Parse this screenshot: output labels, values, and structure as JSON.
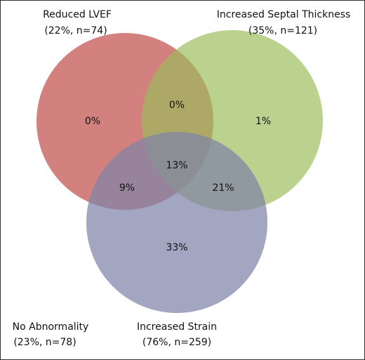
{
  "sets": [
    {
      "name": "Reduced LVEF",
      "detail": "(22%, n=74)",
      "color": "#c0504d"
    },
    {
      "name": "Increased Septal Thickness",
      "detail": "(35%, n=121)",
      "color": "#9bbb59"
    },
    {
      "name": "Increased Strain",
      "detail": "(76%, n=259)",
      "color": "#7f84a8"
    }
  ],
  "regions": [
    "0%",
    "0%",
    "1%",
    "13%",
    "9%",
    "21%",
    "33%"
  ],
  "outside": {
    "name": "No Abnormality",
    "detail": "(23%, n=78)"
  }
}
